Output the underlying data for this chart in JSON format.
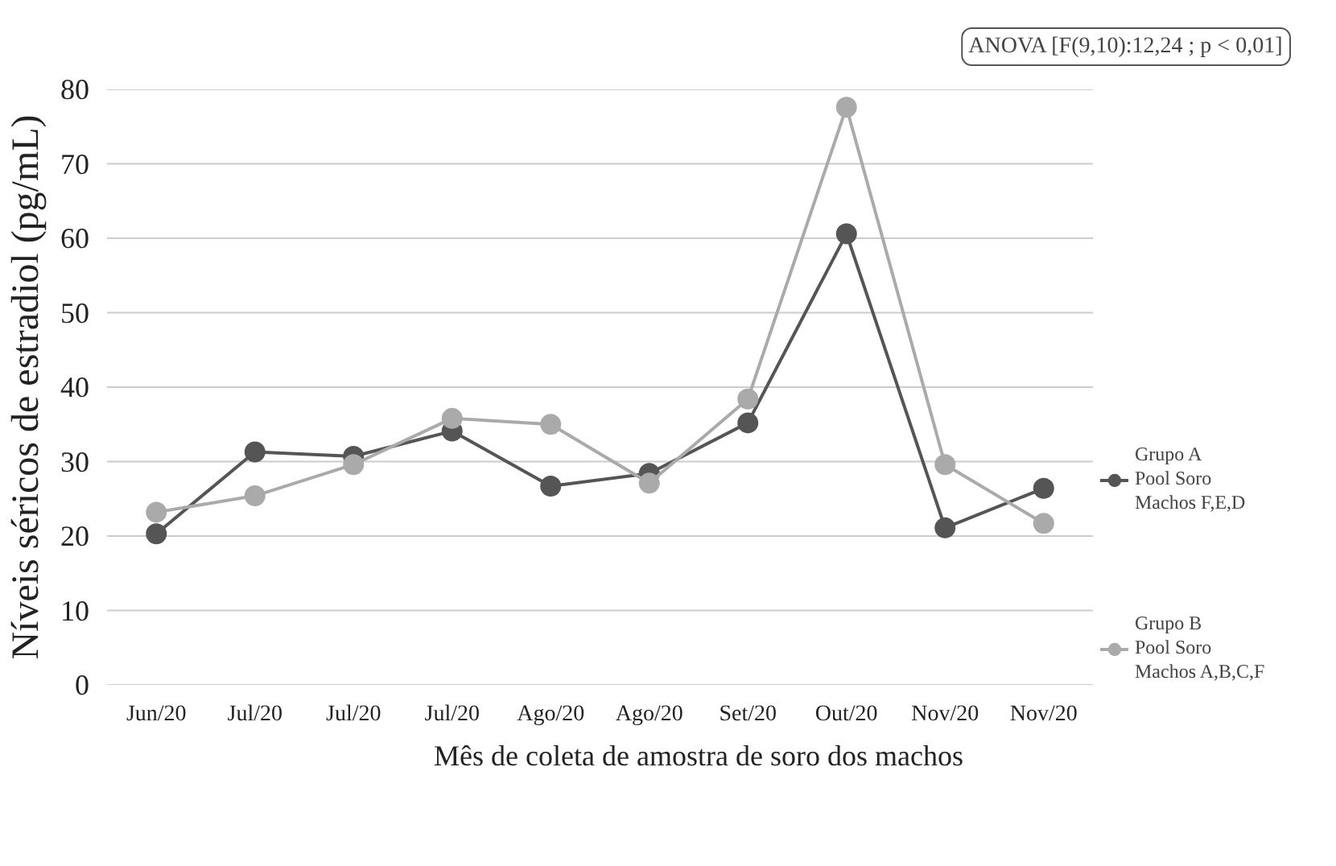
{
  "chart_data": {
    "type": "line",
    "xlabel": "Mês de coleta de amostra de soro dos machos",
    "ylabel": "Níveis séricos de estradiol (pg/mL)",
    "categories": [
      "Jun/20",
      "Jul/20",
      "Jul/20",
      "Jul/20",
      "Ago/20",
      "Ago/20",
      "Set/20",
      "Out/20",
      "Nov/20",
      "Nov/20"
    ],
    "series": [
      {
        "name": "Grupo A\nPool Soro\nMachos F,E,D",
        "color": "#555555",
        "values": [
          20.3,
          31.3,
          30.7,
          34.1,
          26.7,
          28.4,
          35.2,
          60.6,
          21.1,
          26.4
        ]
      },
      {
        "name": "Grupo B\nPool Soro\nMachos A,B,C,F",
        "color": "#aaaaaa",
        "values": [
          23.2,
          25.4,
          29.6,
          35.8,
          35.0,
          27.1,
          38.4,
          77.6,
          29.6,
          21.7
        ]
      }
    ],
    "ylim": [
      0,
      80
    ],
    "yticks": [
      0,
      10,
      20,
      30,
      40,
      50,
      60,
      70,
      80
    ],
    "grid": "y",
    "legend": "right",
    "marker": "circle",
    "line_style": "solid",
    "annotations": [
      "ANOVA [F(9,10):12,24 ; p < 0,01]"
    ]
  }
}
